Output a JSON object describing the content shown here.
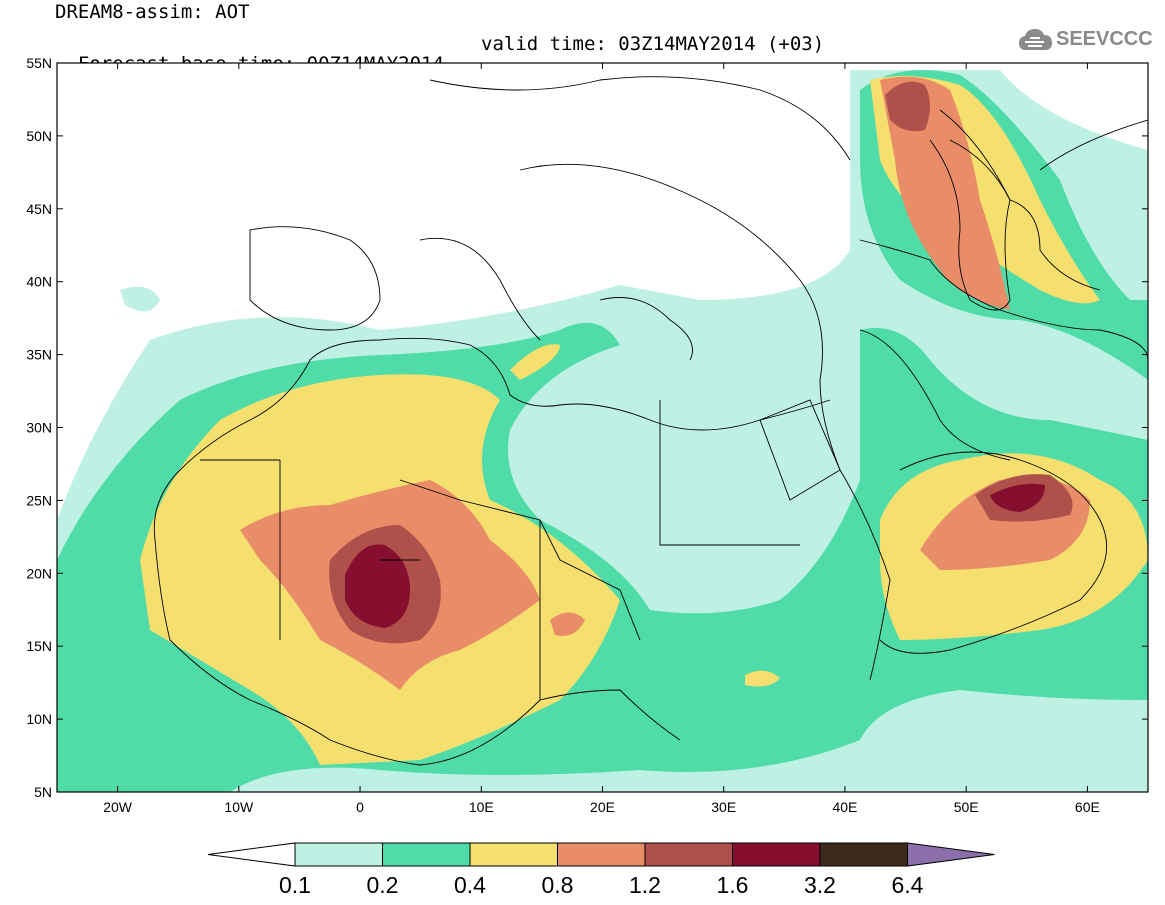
{
  "header": {
    "line1": "DREAM8-assim: AOT",
    "line2_left": "Forecast base time: 00Z14MAY2014",
    "line2_right": "valid time: 03Z14MAY2014 (+03)"
  },
  "logo": {
    "text": "SEEVCCC",
    "icon": "cloud-icon"
  },
  "axes": {
    "lat_ticks": [
      "55N",
      "50N",
      "45N",
      "40N",
      "35N",
      "30N",
      "25N",
      "20N",
      "15N",
      "10N",
      "5N"
    ],
    "lon_ticks": [
      "20W",
      "10W",
      "0",
      "10E",
      "20E",
      "30E",
      "40E",
      "50E",
      "60E"
    ]
  },
  "legend": {
    "levels": [
      "0.1",
      "0.2",
      "0.4",
      "0.8",
      "1.2",
      "1.6",
      "3.2",
      "6.4"
    ],
    "colors": [
      "#ffffff",
      "#bff0e4",
      "#4fdca8",
      "#f5df6e",
      "#e98d68",
      "#b0504a",
      "#860e2e",
      "#3e2a1b",
      "#8b6eaa"
    ]
  }
}
